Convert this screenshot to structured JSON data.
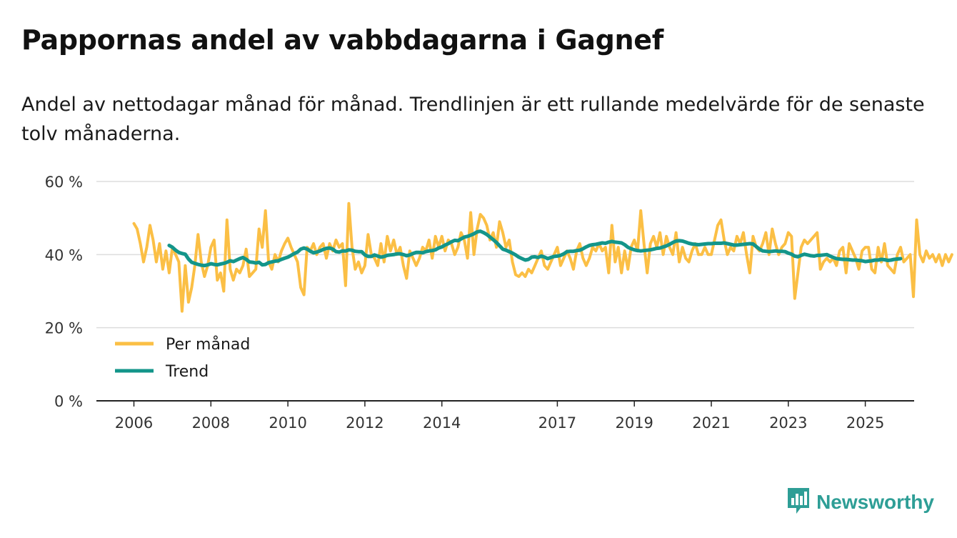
{
  "title": "Pappornas andel av vabbdagarna i Gagnef",
  "subtitle": "Andel av nettodagar månad för månad. Trendlinjen är ett rullande medelvärde för de senaste tolv månaderna.",
  "brand": "Newsworthy",
  "colors": {
    "monthly": "#fbbf45",
    "trend": "#13958a",
    "grid": "#dddddd",
    "axis": "#222222",
    "brand": "#2e9e96"
  },
  "icons": {
    "brand_logo": "bar-chart-speech-bubble-icon"
  },
  "chart_data": {
    "type": "line",
    "title": "Pappornas andel av vabbdagarna i Gagnef",
    "xlabel": "",
    "ylabel": "",
    "xlim": [
      2005.9,
      2026.3
    ],
    "ylim": [
      0,
      60
    ],
    "y_ticks": [
      0,
      20,
      40,
      60
    ],
    "y_tick_labels": [
      "0 %",
      "20 %",
      "40 %",
      "60 %"
    ],
    "x_ticks": [
      2006,
      2008,
      2010,
      2012,
      2014,
      2017,
      2019,
      2021,
      2023,
      2025
    ],
    "x_tick_labels": [
      "2006",
      "2008",
      "2010",
      "2012",
      "2014",
      "2017",
      "2019",
      "2021",
      "2023",
      "2025"
    ],
    "legend": {
      "position": "bottom-left",
      "entries": [
        "Per månad",
        "Trend"
      ]
    },
    "grid": true,
    "series": [
      {
        "name": "Per månad",
        "start": 2006.0,
        "step_months": 1,
        "values": [
          48.5,
          47,
          43,
          38,
          42,
          48,
          44,
          38,
          43,
          36,
          41,
          35,
          42,
          40,
          38,
          24.5,
          37,
          27,
          31,
          37,
          45.5,
          38,
          34,
          37,
          42,
          44,
          33,
          35,
          30,
          49.5,
          36,
          33,
          36,
          35,
          37,
          41.5,
          34,
          35,
          36,
          47,
          42,
          52,
          38,
          36,
          40,
          38,
          41,
          43,
          44.5,
          42,
          40,
          38,
          31,
          29,
          42,
          41,
          43,
          40,
          42,
          43,
          39,
          43,
          41,
          44,
          42,
          43,
          31.5,
          54,
          42,
          36,
          38,
          35,
          37,
          45.5,
          40,
          39,
          37,
          43,
          38,
          45,
          41,
          44,
          40,
          42,
          37,
          33.5,
          41,
          39,
          37,
          39,
          42,
          41,
          44,
          39,
          45,
          42,
          45,
          41,
          44,
          43,
          40,
          42,
          46,
          44,
          39,
          51.5,
          40,
          47,
          51,
          50,
          48,
          44,
          46,
          42,
          49,
          46,
          42,
          44,
          38,
          34.5,
          34,
          35,
          34,
          36,
          35,
          37,
          39,
          41,
          37,
          36,
          38,
          40,
          42,
          37,
          39,
          41,
          39,
          36,
          41,
          43,
          39,
          37,
          39,
          42,
          41,
          43,
          41,
          42,
          35,
          48,
          38,
          42,
          35,
          41,
          36,
          42,
          44,
          41,
          52,
          43,
          35,
          43,
          45,
          42,
          46,
          40,
          45,
          42,
          40,
          46,
          38,
          42,
          39,
          38,
          41,
          43,
          40,
          40,
          42,
          40,
          40,
          44,
          48,
          49.5,
          44,
          40,
          42,
          41,
          45,
          43,
          46,
          40,
          35,
          45,
          42,
          41,
          43,
          46,
          40,
          47,
          43,
          40,
          42,
          43,
          46,
          45,
          28,
          35,
          42,
          44,
          43,
          44,
          45,
          46,
          36,
          38,
          39,
          38,
          39,
          37,
          41,
          42,
          35,
          43,
          41,
          39,
          36,
          41,
          42,
          42,
          36,
          35,
          42,
          38,
          43,
          37,
          36,
          35,
          40,
          42,
          38,
          39,
          40,
          28.5,
          49.5,
          40,
          38,
          41,
          39,
          40,
          38,
          40,
          37,
          40,
          38,
          40
        ]
      },
      {
        "name": "Trend",
        "start": 2006.917,
        "step_months": 1,
        "values": [
          42.5,
          42,
          41.2,
          40.6,
          40.3,
          40.1,
          38.8,
          37.9,
          37.6,
          37.3,
          37.1,
          37,
          37.2,
          37.5,
          37.3,
          37.2,
          37.4,
          37.6,
          37.9,
          38.3,
          38.1,
          38.5,
          38.9,
          39.2,
          38.7,
          38,
          37.9,
          37.7,
          37.9,
          37.2,
          37.3,
          37.8,
          38,
          38.2,
          38.3,
          38.7,
          39,
          39.3,
          39.8,
          40.3,
          40.7,
          41.5,
          41.8,
          41.5,
          40.9,
          40.5,
          40.7,
          41,
          41.4,
          41.7,
          41.8,
          41.5,
          40.8,
          40.7,
          41,
          41,
          41.3,
          41.2,
          40.9,
          40.8,
          40.8,
          39.9,
          39.5,
          39.5,
          39.9,
          39.6,
          39.3,
          39.5,
          39.8,
          39.9,
          40,
          40.2,
          40.2,
          40,
          39.7,
          39.9,
          40.3,
          40.6,
          40.6,
          40.5,
          40.8,
          41,
          41.1,
          41.3,
          41.8,
          42.1,
          42.6,
          43,
          43.5,
          43.9,
          43.8,
          44.3,
          44.8,
          45,
          45.3,
          45.7,
          46.2,
          46.4,
          46,
          45.5,
          44.8,
          44.1,
          43.3,
          42.4,
          41.5,
          41.2,
          40.8,
          40.4,
          39.9,
          39.3,
          38.9,
          38.5,
          38.7,
          39.3,
          39.4,
          39.2,
          39.6,
          39.3,
          38.9,
          39.2,
          39.5,
          39.6,
          39.8,
          40.2,
          40.8,
          40.9,
          40.9,
          41.1,
          41.2,
          41.6,
          42.1,
          42.5,
          42.7,
          42.8,
          43,
          43.2,
          43.1,
          43.4,
          43.6,
          43.4,
          43.3,
          43.2,
          42.7,
          42,
          41.6,
          41.3,
          41.1,
          41,
          41.1,
          41.2,
          41.3,
          41.5,
          41.7,
          41.8,
          42.1,
          42.4,
          42.8,
          43.3,
          43.7,
          43.8,
          43.7,
          43.4,
          43.1,
          42.9,
          42.8,
          42.7,
          42.8,
          42.9,
          43,
          43,
          43.1,
          43.1,
          43.1,
          43.2,
          43,
          42.8,
          42.6,
          42.6,
          42.7,
          42.8,
          42.9,
          43,
          42.9,
          42.2,
          41.5,
          41,
          40.9,
          40.8,
          40.9,
          41,
          40.9,
          40.9,
          40.8,
          40.4,
          40.1,
          39.6,
          39.4,
          39.8,
          40.1,
          39.9,
          39.7,
          39.6,
          39.8,
          39.8,
          39.9,
          40,
          39.6,
          39.2,
          38.9,
          38.8,
          38.7,
          38.7,
          38.6,
          38.5,
          38.5,
          38.4,
          38.3,
          38.1,
          38.2,
          38.3,
          38.5,
          38.5,
          38.7,
          38.6,
          38.4,
          38.5,
          38.7,
          38.8,
          38.9
        ]
      }
    ]
  }
}
